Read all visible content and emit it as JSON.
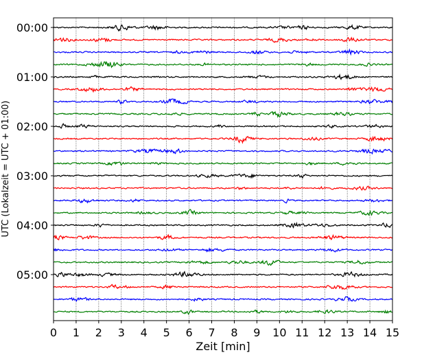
{
  "chart_data": {
    "type": "line",
    "title": "",
    "xlabel": "Zeit  [min]",
    "ylabel": "UTC (Lokalzeit = UTC + 01:00)",
    "xlim": [
      0,
      15
    ],
    "x_ticks": [
      "0",
      "1",
      "2",
      "3",
      "4",
      "5",
      "6",
      "7",
      "8",
      "9",
      "10",
      "11",
      "12",
      "13",
      "14",
      "15"
    ],
    "y_ticks": [
      "00:00",
      "01:00",
      "02:00",
      "03:00",
      "04:00",
      "05:00"
    ],
    "traces_per_hour": 4,
    "trace_count": 24,
    "trace_colors": [
      "#000000",
      "#ff0000",
      "#0000ff",
      "#007f00"
    ],
    "grid": "vertical dotted lines at each minute",
    "legend": "none"
  }
}
